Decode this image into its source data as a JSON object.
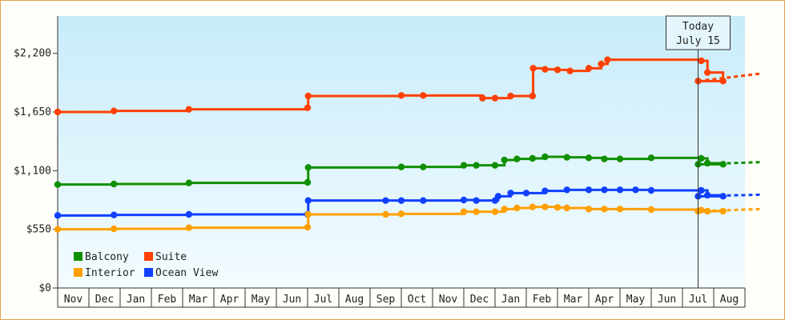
{
  "chart_data": {
    "type": "line",
    "ylim": [
      0,
      2550
    ],
    "y_ticks": [
      {
        "value": 0,
        "label": "$0"
      },
      {
        "value": 550,
        "label": "$550"
      },
      {
        "value": 1100,
        "label": "$1,100"
      },
      {
        "value": 1650,
        "label": "$1,650"
      },
      {
        "value": 2200,
        "label": "$2,200"
      }
    ],
    "x_ticks": [
      "Nov",
      "Dec",
      "Jan",
      "Feb",
      "Mar",
      "Apr",
      "May",
      "Jun",
      "Jul",
      "Aug",
      "Sep",
      "Oct",
      "Nov",
      "Dec",
      "Jan",
      "Feb",
      "Mar",
      "Apr",
      "May",
      "Jun",
      "Jul",
      "Aug"
    ],
    "grid": false,
    "background": "gradient light blue",
    "today_marker": {
      "line1": "Today",
      "line2": "July 15",
      "x": 20.5
    },
    "legend": {
      "position": "bottom-left"
    },
    "series": [
      {
        "name": "Suite",
        "color": "#ff4000",
        "points": [
          [
            0,
            1650
          ],
          [
            1.8,
            1660
          ],
          [
            4.2,
            1675
          ],
          [
            8.0,
            1690
          ],
          [
            8.02,
            1800
          ],
          [
            11.0,
            1805
          ],
          [
            11.7,
            1805
          ],
          [
            13.6,
            1780
          ],
          [
            14.0,
            1780
          ],
          [
            14.5,
            1800
          ],
          [
            15.2,
            1800
          ],
          [
            15.22,
            2060
          ],
          [
            15.6,
            2050
          ],
          [
            16.0,
            2045
          ],
          [
            16.4,
            2035
          ],
          [
            17.0,
            2060
          ],
          [
            17.4,
            2100
          ],
          [
            17.6,
            2140
          ],
          [
            20.6,
            2130
          ],
          [
            20.8,
            2020
          ],
          [
            21.3,
            1940
          ],
          [
            20.5,
            1940
          ]
        ],
        "forecast": [
          [
            20.5,
            1940
          ],
          [
            22.5,
            2010
          ]
        ]
      },
      {
        "name": "Balcony",
        "color": "#109000",
        "points": [
          [
            0,
            970
          ],
          [
            1.8,
            975
          ],
          [
            4.2,
            985
          ],
          [
            8.0,
            990
          ],
          [
            8.02,
            1130
          ],
          [
            11.0,
            1135
          ],
          [
            11.7,
            1135
          ],
          [
            13.0,
            1150
          ],
          [
            13.4,
            1150
          ],
          [
            14.0,
            1150
          ],
          [
            14.3,
            1200
          ],
          [
            14.7,
            1210
          ],
          [
            15.2,
            1215
          ],
          [
            15.6,
            1230
          ],
          [
            16.3,
            1225
          ],
          [
            17.0,
            1220
          ],
          [
            17.5,
            1210
          ],
          [
            18.0,
            1210
          ],
          [
            19.0,
            1220
          ],
          [
            20.6,
            1215
          ],
          [
            20.8,
            1170
          ],
          [
            21.3,
            1160
          ],
          [
            20.5,
            1160
          ]
        ],
        "forecast": [
          [
            20.5,
            1160
          ],
          [
            22.5,
            1180
          ]
        ]
      },
      {
        "name": "Ocean View",
        "color": "#1040ff",
        "points": [
          [
            0,
            680
          ],
          [
            1.8,
            685
          ],
          [
            4.2,
            690
          ],
          [
            8.0,
            690
          ],
          [
            8.02,
            820
          ],
          [
            10.5,
            820
          ],
          [
            11.0,
            820
          ],
          [
            11.7,
            820
          ],
          [
            13.0,
            825
          ],
          [
            13.4,
            820
          ],
          [
            14.0,
            820
          ],
          [
            14.1,
            860
          ],
          [
            14.5,
            890
          ],
          [
            15.0,
            890
          ],
          [
            15.6,
            910
          ],
          [
            16.3,
            920
          ],
          [
            17.0,
            920
          ],
          [
            17.5,
            920
          ],
          [
            18.0,
            920
          ],
          [
            18.5,
            920
          ],
          [
            19.0,
            915
          ],
          [
            20.6,
            915
          ],
          [
            20.8,
            870
          ],
          [
            21.3,
            860
          ],
          [
            20.5,
            860
          ]
        ],
        "forecast": [
          [
            20.5,
            860
          ],
          [
            22.5,
            875
          ]
        ]
      },
      {
        "name": "Interior",
        "color": "#ffa000",
        "points": [
          [
            0,
            550
          ],
          [
            1.8,
            555
          ],
          [
            4.2,
            565
          ],
          [
            8.0,
            570
          ],
          [
            8.02,
            690
          ],
          [
            10.5,
            690
          ],
          [
            11.0,
            695
          ],
          [
            13.0,
            715
          ],
          [
            13.4,
            715
          ],
          [
            14.0,
            715
          ],
          [
            14.3,
            740
          ],
          [
            14.7,
            750
          ],
          [
            15.2,
            760
          ],
          [
            15.6,
            760
          ],
          [
            16.0,
            755
          ],
          [
            16.3,
            750
          ],
          [
            17.0,
            740
          ],
          [
            17.5,
            740
          ],
          [
            18.0,
            740
          ],
          [
            19.0,
            735
          ],
          [
            20.6,
            730
          ],
          [
            20.8,
            720
          ],
          [
            21.3,
            720
          ],
          [
            20.5,
            720
          ]
        ],
        "forecast": [
          [
            20.5,
            720
          ],
          [
            22.5,
            740
          ]
        ]
      }
    ]
  },
  "legend_items": [
    {
      "label": "Balcony",
      "color": "#109000"
    },
    {
      "label": "Suite",
      "color": "#ff4000"
    },
    {
      "label": "Interior",
      "color": "#ffa000"
    },
    {
      "label": "Ocean View",
      "color": "#1040ff"
    }
  ]
}
